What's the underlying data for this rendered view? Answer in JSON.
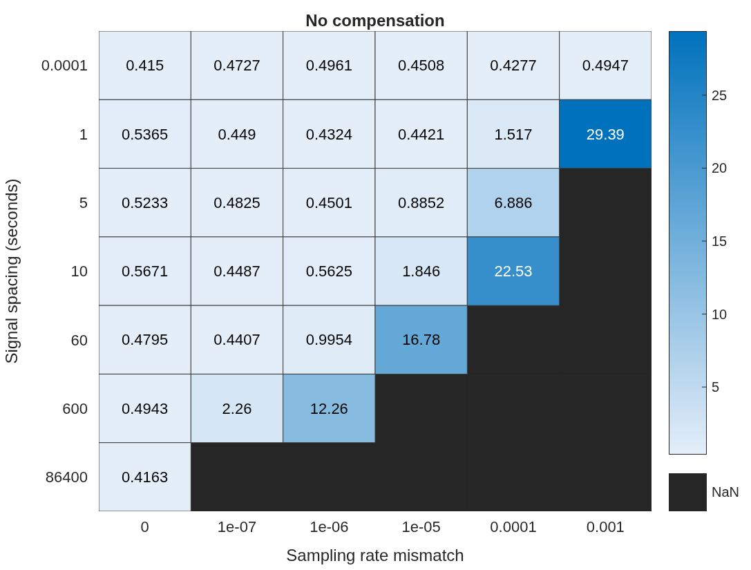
{
  "chart_data": {
    "type": "heatmap",
    "title": "No compensation",
    "xlabel": "Sampling rate mismatch",
    "ylabel": "Signal spacing (seconds)",
    "categories": [
      "0",
      "1e-07",
      "1e-06",
      "1e-05",
      "0.0001",
      "0.001"
    ],
    "y_categories": [
      "0.0001",
      "1",
      "5",
      "10",
      "60",
      "600",
      "86400"
    ],
    "cells": [
      [
        0.415,
        0.4727,
        0.4961,
        0.4508,
        0.4277,
        0.4947
      ],
      [
        0.5365,
        0.449,
        0.4324,
        0.4421,
        1.517,
        29.39
      ],
      [
        0.5233,
        0.4825,
        0.4501,
        0.8852,
        6.886,
        null
      ],
      [
        0.5671,
        0.4487,
        0.5625,
        1.846,
        22.53,
        null
      ],
      [
        0.4795,
        0.4407,
        0.9954,
        16.78,
        null,
        null
      ],
      [
        0.4943,
        2.26,
        12.26,
        null,
        null,
        null
      ],
      [
        0.4163,
        null,
        null,
        null,
        null,
        null
      ]
    ],
    "clim": [
      0.415,
      29.39
    ],
    "cticks": [
      5,
      10,
      15,
      20,
      25
    ],
    "data_labels": true,
    "annotations": [
      "NaN"
    ]
  }
}
